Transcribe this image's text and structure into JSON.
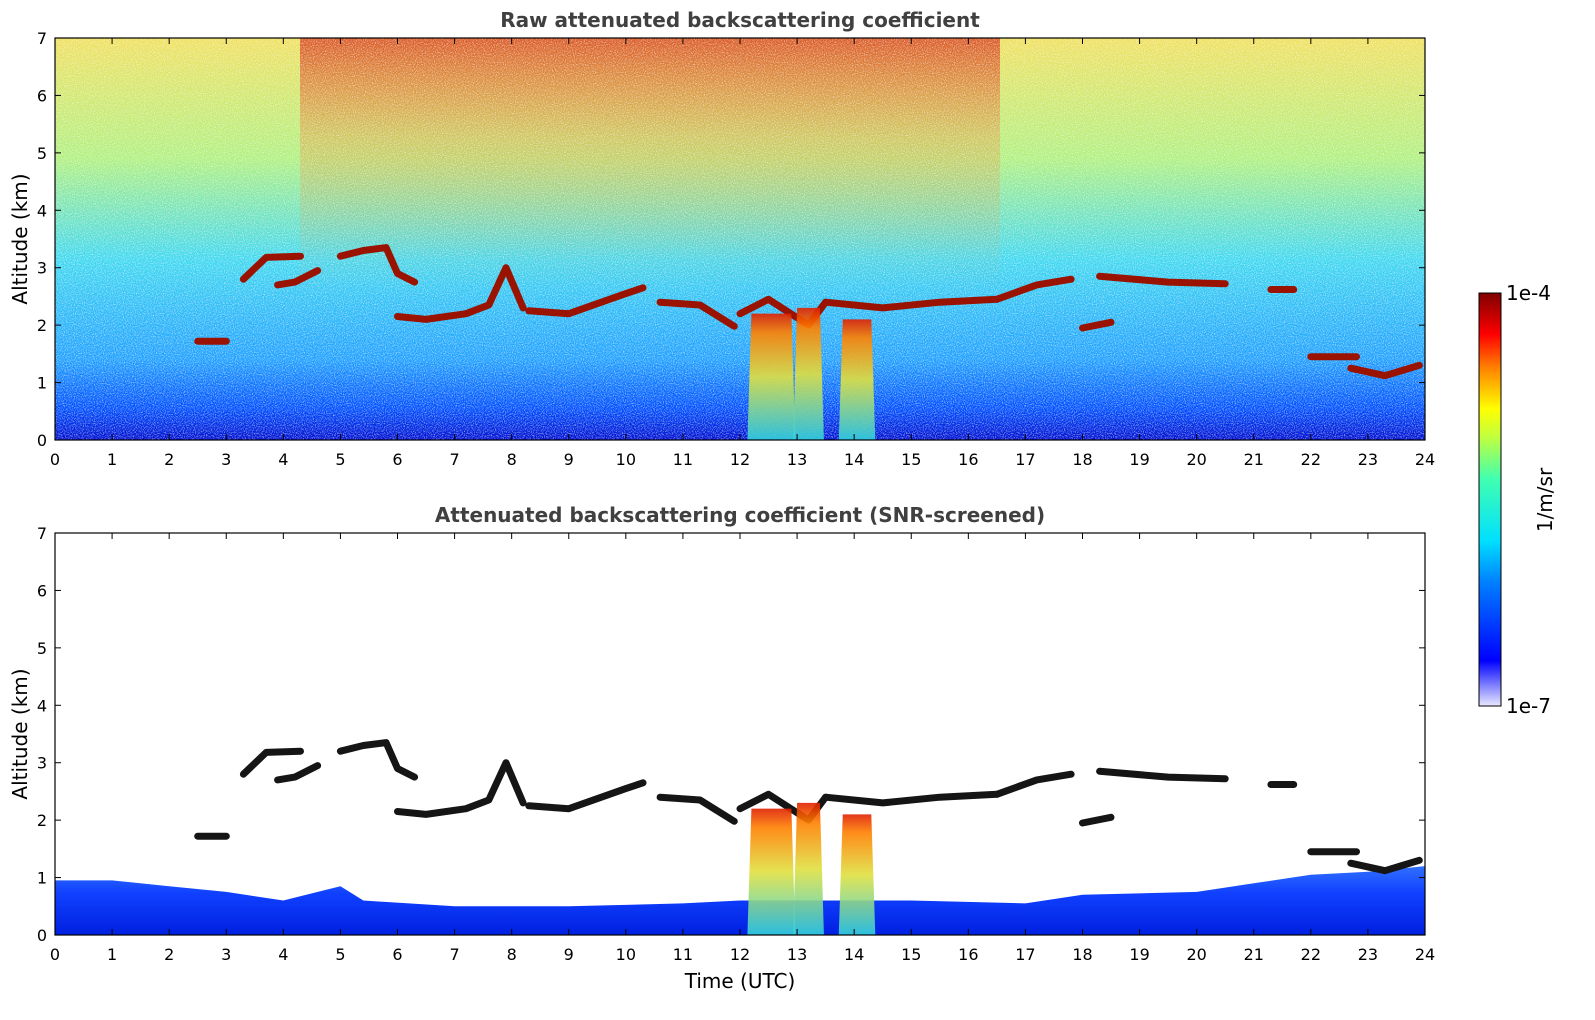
{
  "chart_data": [
    {
      "type": "heatmap",
      "title": "Raw attenuated backscattering coefficient",
      "xlabel": "",
      "ylabel": "Altitude (km)",
      "xlim": [
        0,
        24
      ],
      "ylim": [
        0,
        7
      ],
      "xticks": [
        "0",
        "1",
        "2",
        "3",
        "4",
        "5",
        "6",
        "7",
        "8",
        "9",
        "10",
        "11",
        "12",
        "13",
        "14",
        "15",
        "16",
        "17",
        "18",
        "19",
        "20",
        "21",
        "22",
        "23",
        "24"
      ],
      "yticks": [
        "0",
        "1",
        "2",
        "3",
        "4",
        "5",
        "6",
        "7"
      ],
      "screened": false,
      "layers": [
        {
          "x": [
            3.3,
            3.7,
            4.3
          ],
          "y": [
            2.8,
            3.18,
            3.2
          ]
        },
        {
          "x": [
            3.9,
            4.2,
            4.6
          ],
          "y": [
            2.7,
            2.75,
            2.95
          ]
        },
        {
          "x": [
            5.0,
            5.4,
            5.8,
            6.0,
            6.3
          ],
          "y": [
            3.2,
            3.3,
            3.35,
            2.9,
            2.75
          ]
        },
        {
          "x": [
            6.0,
            6.5,
            7.2,
            7.6,
            7.9,
            8.2
          ],
          "y": [
            2.15,
            2.1,
            2.2,
            2.35,
            3.0,
            2.3
          ]
        },
        {
          "x": [
            8.3,
            9.0,
            10.0,
            10.3
          ],
          "y": [
            2.25,
            2.2,
            2.55,
            2.65
          ]
        },
        {
          "x": [
            10.6,
            11.3,
            11.9
          ],
          "y": [
            2.4,
            2.35,
            1.98
          ]
        },
        {
          "x": [
            12.0,
            12.5,
            13.2,
            13.5
          ],
          "y": [
            2.2,
            2.45,
            2.0,
            2.4
          ]
        },
        {
          "x": [
            13.5,
            14.5,
            15.5,
            16.5
          ],
          "y": [
            2.4,
            2.3,
            2.4,
            2.45
          ]
        },
        {
          "x": [
            16.5,
            17.2,
            17.8
          ],
          "y": [
            2.45,
            2.7,
            2.8
          ]
        },
        {
          "x": [
            18.0,
            18.5
          ],
          "y": [
            1.95,
            2.05
          ]
        },
        {
          "x": [
            18.3,
            19.5,
            20.5
          ],
          "y": [
            2.85,
            2.75,
            2.72
          ]
        },
        {
          "x": [
            21.3,
            21.7
          ],
          "y": [
            2.62,
            2.62
          ]
        },
        {
          "x": [
            22.0,
            22.8
          ],
          "y": [
            1.45,
            1.45
          ]
        },
        {
          "x": [
            22.7,
            23.3,
            23.9
          ],
          "y": [
            1.25,
            1.12,
            1.3
          ]
        },
        {
          "x": [
            2.5,
            3.0
          ],
          "y": [
            1.72,
            1.72
          ]
        }
      ],
      "precipitation_shafts": [
        {
          "x0": 12.2,
          "x1": 12.9,
          "top": 2.2
        },
        {
          "x0": 13.0,
          "x1": 13.4,
          "top": 2.3
        },
        {
          "x0": 13.8,
          "x1": 14.3,
          "top": 2.1
        }
      ]
    },
    {
      "type": "heatmap",
      "title": "Attenuated backscattering coefficient (SNR-screened)",
      "xlabel": "Time (UTC)",
      "ylabel": "Altitude (km)",
      "xlim": [
        0,
        24
      ],
      "ylim": [
        0,
        7
      ],
      "xticks": [
        "0",
        "1",
        "2",
        "3",
        "4",
        "5",
        "6",
        "7",
        "8",
        "9",
        "10",
        "11",
        "12",
        "13",
        "14",
        "15",
        "16",
        "17",
        "18",
        "19",
        "20",
        "21",
        "22",
        "23",
        "24"
      ],
      "yticks": [
        "0",
        "1",
        "2",
        "3",
        "4",
        "5",
        "6",
        "7"
      ],
      "screened": true
    }
  ],
  "colorbar": {
    "top_label": "1e-4",
    "bottom_label": "1e-7",
    "unit_label": "1/m/sr",
    "colormap": "jet"
  }
}
